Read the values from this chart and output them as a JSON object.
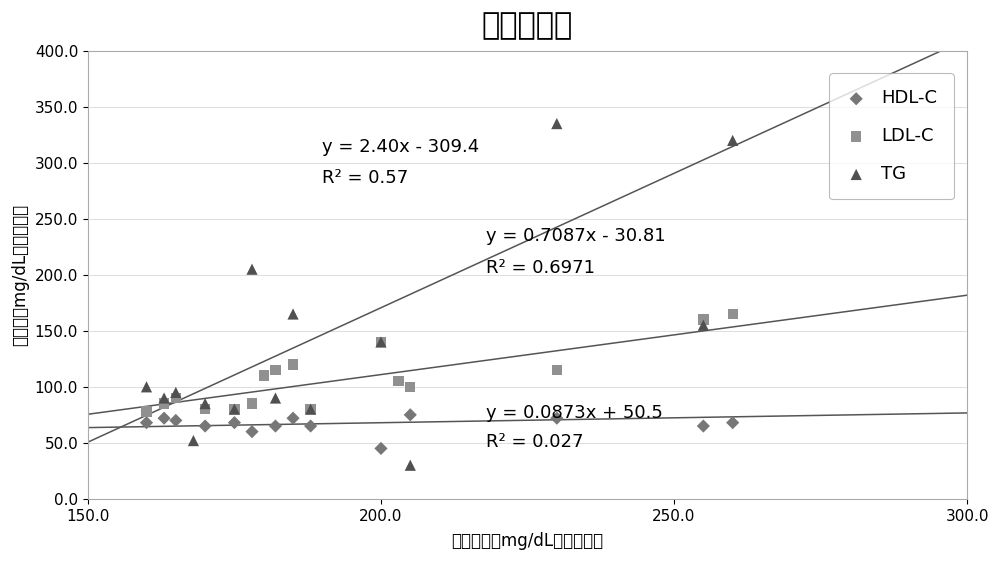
{
  "title": "样品脂质值",
  "xlabel": "总胆固醇，mg/dL，参考测定",
  "ylabel": "脂质值，mg/dL，参考测定",
  "xlim": [
    150.0,
    300.0
  ],
  "ylim": [
    0.0,
    400.0
  ],
  "xticks": [
    150.0,
    200.0,
    250.0,
    300.0
  ],
  "yticks": [
    0.0,
    50.0,
    100.0,
    150.0,
    200.0,
    250.0,
    300.0,
    350.0,
    400.0
  ],
  "hdl_x": [
    160,
    163,
    165,
    170,
    175,
    178,
    182,
    185,
    188,
    200,
    205,
    230,
    255,
    260
  ],
  "hdl_y": [
    68,
    72,
    70,
    65,
    68,
    60,
    65,
    72,
    65,
    45,
    75,
    72,
    65,
    68
  ],
  "ldl_x": [
    160,
    163,
    165,
    170,
    175,
    178,
    180,
    182,
    185,
    188,
    200,
    203,
    205,
    230,
    255,
    260
  ],
  "ldl_y": [
    78,
    85,
    90,
    80,
    80,
    85,
    110,
    115,
    120,
    80,
    140,
    105,
    100,
    115,
    160,
    165
  ],
  "tg_x": [
    160,
    163,
    165,
    168,
    170,
    175,
    178,
    182,
    185,
    188,
    200,
    205,
    230,
    255,
    260
  ],
  "tg_y": [
    100,
    90,
    95,
    52,
    85,
    80,
    205,
    90,
    165,
    80,
    140,
    30,
    335,
    155,
    320
  ],
  "hdl_eq": "y = 0.0873x + 50.5",
  "hdl_r2": "R² = 0.027",
  "hdl_slope": 0.0873,
  "hdl_intercept": 50.5,
  "ldl_eq": "y = 0.7087x - 30.81",
  "ldl_r2": "R² = 0.6971",
  "ldl_slope": 0.7087,
  "ldl_intercept": -30.81,
  "tg_eq": "y = 2.40x - 309.4",
  "tg_r2": "R² = 0.57",
  "tg_slope": 2.4,
  "tg_intercept": -309.4,
  "line_color": "#555555",
  "bg_color": "#ffffff",
  "title_fontsize": 22,
  "label_fontsize": 12,
  "tick_fontsize": 11,
  "annotation_fontsize": 13,
  "legend_fontsize": 13
}
